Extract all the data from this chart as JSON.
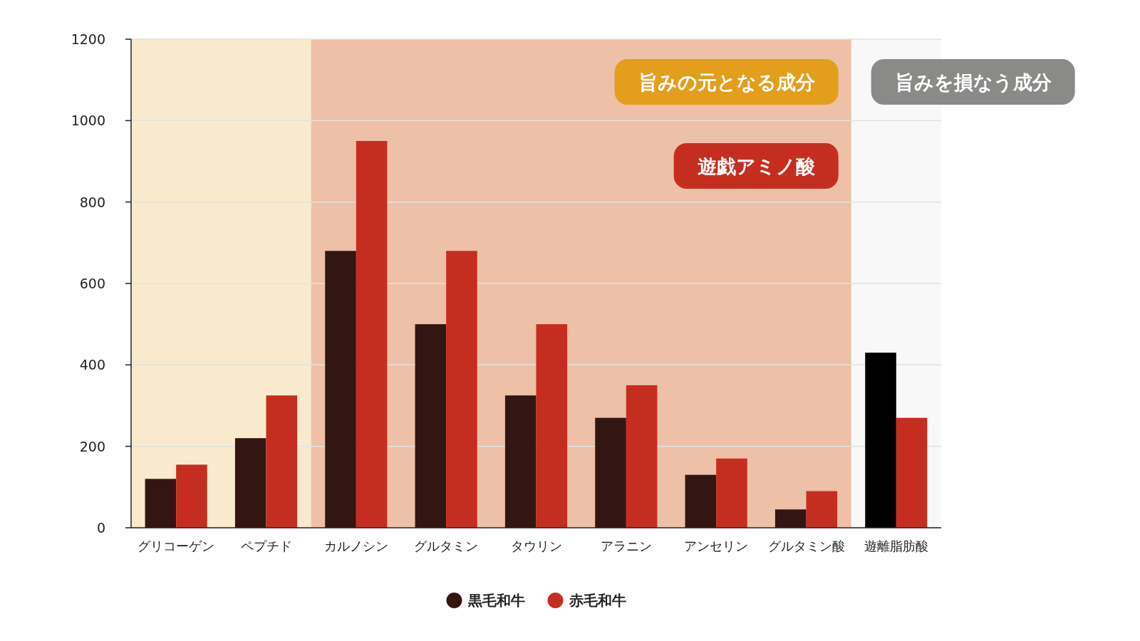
{
  "chart_data": {
    "type": "bar",
    "categories": [
      "グリコーゲン",
      "ペプチド",
      "カルノシン",
      "グルタミン",
      "タウリン",
      "アラニン",
      "アンセリン",
      "グルタミン酸",
      "遊離脂肪酸"
    ],
    "series": [
      {
        "name": "黒毛和牛",
        "color": "#331512",
        "colors": [
          "#331512",
          "#331512",
          "#331512",
          "#331512",
          "#331512",
          "#331512",
          "#331512",
          "#331512",
          "#000000"
        ],
        "values": [
          120,
          220,
          680,
          500,
          325,
          270,
          130,
          45,
          430
        ]
      },
      {
        "name": "赤毛和牛",
        "color": "#c62d21",
        "values": [
          155,
          325,
          950,
          680,
          500,
          350,
          170,
          90,
          270
        ]
      }
    ],
    "ylim": [
      0,
      1200
    ],
    "yticks": [
      0,
      200,
      400,
      600,
      800,
      1000,
      1200
    ],
    "grid": "y",
    "legend": "bottom",
    "bands": [
      {
        "axis": "x",
        "from": "グリコーゲン",
        "to": "グルタミン酸",
        "label": "旨みの元となる成分",
        "color": "#e39e1d"
      },
      {
        "axis": "x",
        "from": "カルノシン",
        "to": "グルタミン酸",
        "label": "遊戯アミノ酸",
        "color": "#c62d21"
      },
      {
        "axis": "x",
        "from": "遊離脂肪酸",
        "to": "遊離脂肪酸",
        "label": "旨みを損なう成分",
        "color": "#8a8a88"
      }
    ]
  }
}
